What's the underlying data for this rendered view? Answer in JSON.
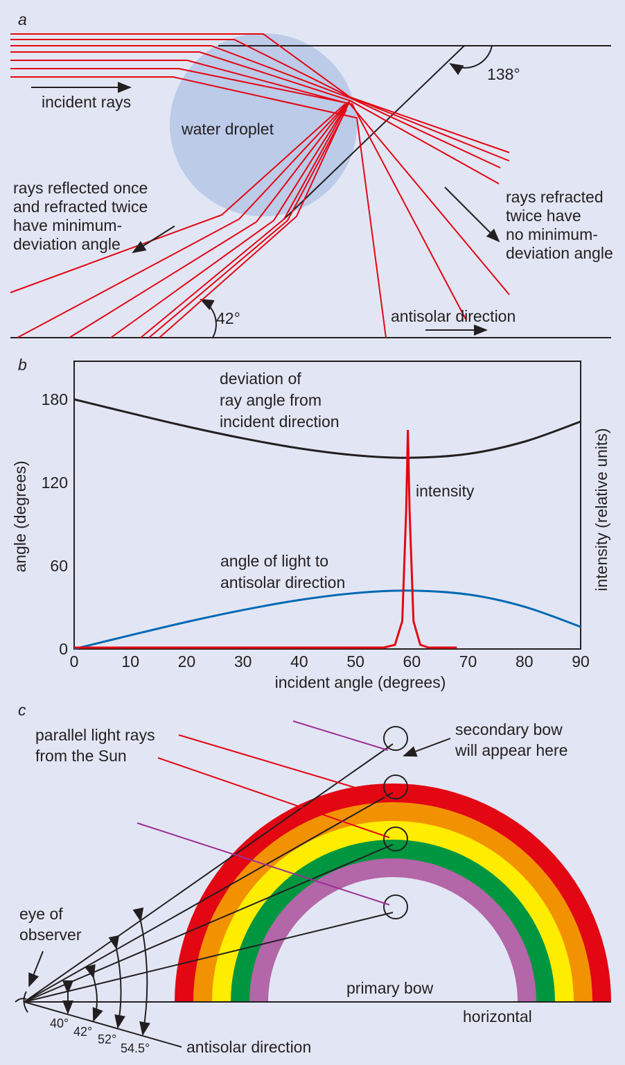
{
  "panel_a": {
    "letter": "a",
    "incident_rays": "incident rays",
    "water_droplet": "water droplet",
    "angle_138": "138°",
    "reflected_label": [
      "rays reflected once",
      "and refracted twice",
      "have minimum-",
      "deviation angle"
    ],
    "refracted_label": [
      "rays refracted",
      "twice have",
      "no minimum-",
      "deviation angle"
    ],
    "angle_42": "42°",
    "antisolar": "antisolar direction"
  },
  "panel_b": {
    "letter": "b",
    "ylabel": "angle (degrees)",
    "ylabel_right": "intensity (relative units)",
    "xlabel": "incident angle (degrees)",
    "deviation_label": [
      "deviation of",
      "ray angle from",
      "incident direction"
    ],
    "intensity_label": "intensity",
    "antisolar_label": [
      "angle of light to",
      "antisolar direction"
    ]
  },
  "chart_data": {
    "type": "line",
    "xlabel": "incident angle (degrees)",
    "ylabel": "angle (degrees)",
    "xlim": [
      0,
      90
    ],
    "ylim": [
      0,
      207
    ],
    "xticks": [
      0,
      10,
      20,
      30,
      40,
      50,
      60,
      70,
      80,
      90
    ],
    "yticks": [
      0,
      60,
      120,
      180
    ],
    "series": [
      {
        "name": "deviation of ray angle from incident direction",
        "color": "#231f20",
        "x": [
          0,
          10,
          20,
          30,
          40,
          50,
          59.4,
          70,
          80,
          90
        ],
        "y": [
          180,
          170.1,
          160.5,
          151.9,
          144.7,
          139.7,
          137.9,
          140.7,
          149.5,
          164
        ]
      },
      {
        "name": "angle of light to antisolar direction",
        "color": "#0069b4",
        "x": [
          0,
          10,
          20,
          30,
          40,
          50,
          59.4,
          70,
          80,
          90
        ],
        "y": [
          0,
          9.9,
          19.5,
          28.1,
          35.3,
          40.3,
          42.1,
          39.3,
          30.5,
          16
        ]
      },
      {
        "name": "intensity",
        "color": "#e30613",
        "x": [
          0,
          55,
          57,
          58.3,
          59,
          59.3,
          59.6,
          60.3,
          61.5,
          63,
          68
        ],
        "y": [
          1,
          1,
          3,
          20,
          100,
          158,
          100,
          20,
          3,
          1,
          1
        ]
      }
    ]
  },
  "panel_c": {
    "letter": "c",
    "sun_rays": [
      "parallel light rays",
      "from the Sun"
    ],
    "secondary": [
      "secondary bow",
      "will appear here"
    ],
    "eye": [
      "eye of",
      "observer"
    ],
    "primary": "primary bow",
    "horizontal": "horizontal",
    "antisolar": "antisolar direction",
    "angles": [
      "40°",
      "42°",
      "52°",
      "54.5°"
    ],
    "bow_colors": [
      "#e30613",
      "#f39200",
      "#ffed00",
      "#009640",
      "#b366a8"
    ]
  },
  "colors": {
    "background": "#e2e6f4",
    "droplet": "#bccbe8",
    "ray": "#e30613",
    "purple": "#9b2f95"
  }
}
